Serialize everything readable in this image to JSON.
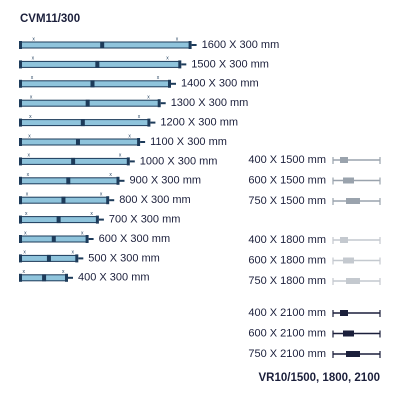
{
  "left": {
    "title": "CVM11/300",
    "items": [
      "1600 X 300 mm",
      "1500 X 300 mm",
      "1400 X 300 mm",
      "1300 X 300 mm",
      "1200 X 300 mm",
      "1100 X 300 mm",
      "1000 X 300 mm",
      "900 X 300 mm",
      "800 X 300 mm",
      "700 X 300 mm",
      "600 X 300 mm",
      "500 X 300 mm",
      "400 X 300 mm"
    ]
  },
  "right": {
    "title": "VR10/1500, 1800, 2100",
    "groups": [
      {
        "items": [
          "400 X 1500 mm",
          "600 X 1500 mm",
          "750 X 1500 mm"
        ]
      },
      {
        "items": [
          "400 X 1800 mm",
          "600 X 1800 mm",
          "750 X 1800 mm"
        ]
      },
      {
        "items": [
          "400 X 2100 mm",
          "600 X 2100 mm",
          "750 X 2100 mm"
        ]
      }
    ]
  }
}
